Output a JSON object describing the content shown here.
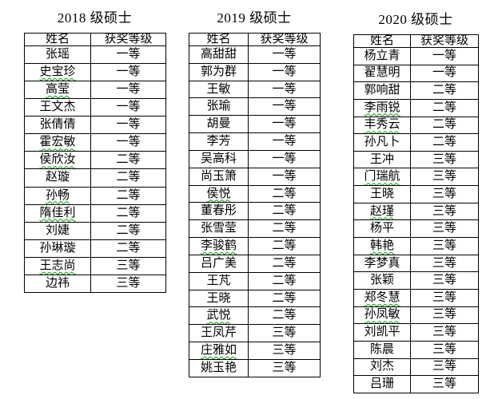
{
  "colors": {
    "page_background": "#ffffff",
    "text": "#000000",
    "table_border": "#000000",
    "spellcheck_underline": "#00a000"
  },
  "tables": [
    {
      "title": "2018 级硕士",
      "columns": [
        "姓名",
        "获奖等级"
      ],
      "rows": [
        {
          "name": "张瑶",
          "award": "一等",
          "spellcheck": false
        },
        {
          "name": "史宝珍",
          "award": "一等",
          "spellcheck": true
        },
        {
          "name": "高莹",
          "award": "一等",
          "spellcheck": true
        },
        {
          "name": "王文杰",
          "award": "一等",
          "spellcheck": false
        },
        {
          "name": "张倩倩",
          "award": "一等",
          "spellcheck": false
        },
        {
          "name": "霍宏敏",
          "award": "一等",
          "spellcheck": true
        },
        {
          "name": "侯欣汝",
          "award": "二等",
          "spellcheck": true
        },
        {
          "name": "赵璇",
          "award": "二等",
          "spellcheck": false
        },
        {
          "name": "孙畅",
          "award": "二等",
          "spellcheck": true
        },
        {
          "name": "隋佳利",
          "award": "二等",
          "spellcheck": true
        },
        {
          "name": "刘婕",
          "award": "二等",
          "spellcheck": false
        },
        {
          "name": "孙琳璇",
          "award": "二等",
          "spellcheck": false
        },
        {
          "name": "王志尚",
          "award": "三等",
          "spellcheck": true
        },
        {
          "name": "边祎",
          "award": "三等",
          "spellcheck": false
        }
      ]
    },
    {
      "title": "2019 级硕士",
      "columns": [
        "姓名",
        "获奖等级"
      ],
      "rows": [
        {
          "name": "高甜甜",
          "award": "一等",
          "spellcheck": false
        },
        {
          "name": "郭为群",
          "award": "一等",
          "spellcheck": false
        },
        {
          "name": "王敏",
          "award": "一等",
          "spellcheck": false
        },
        {
          "name": "张瑜",
          "award": "一等",
          "spellcheck": false
        },
        {
          "name": "胡曼",
          "award": "一等",
          "spellcheck": false
        },
        {
          "name": "李芳",
          "award": "一等",
          "spellcheck": false
        },
        {
          "name": "吴高科",
          "award": "一等",
          "spellcheck": false
        },
        {
          "name": "尚玉箫",
          "award": "一等",
          "spellcheck": false
        },
        {
          "name": "侯悦",
          "award": "二等",
          "spellcheck": true
        },
        {
          "name": "董春彤",
          "award": "二等",
          "spellcheck": false
        },
        {
          "name": "张雪莹",
          "award": "二等",
          "spellcheck": false
        },
        {
          "name": "李骏鹤",
          "award": "二等",
          "spellcheck": true
        },
        {
          "name": "吕广美",
          "award": "二等",
          "spellcheck": false
        },
        {
          "name": "王芃",
          "award": "二等",
          "spellcheck": false
        },
        {
          "name": "王晓",
          "award": "二等",
          "spellcheck": false
        },
        {
          "name": "武悦",
          "award": "二等",
          "spellcheck": true
        },
        {
          "name": "王凤芹",
          "award": "三等",
          "spellcheck": false
        },
        {
          "name": "庄雅如",
          "award": "三等",
          "spellcheck": true
        },
        {
          "name": "姚玉艳",
          "award": "三等",
          "spellcheck": false
        }
      ]
    },
    {
      "title": "2020 级硕士",
      "columns": [
        "姓名",
        "获奖等级"
      ],
      "rows": [
        {
          "name": "杨立青",
          "award": "一等",
          "spellcheck": false
        },
        {
          "name": "翟慧明",
          "award": "一等",
          "spellcheck": false
        },
        {
          "name": "郭响甜",
          "award": "二等",
          "spellcheck": false
        },
        {
          "name": "李雨锐",
          "award": "二等",
          "spellcheck": true
        },
        {
          "name": "丰秀云",
          "award": "二等",
          "spellcheck": true
        },
        {
          "name": "孙凡卜",
          "award": "二等",
          "spellcheck": false
        },
        {
          "name": "王冲",
          "award": "三等",
          "spellcheck": false
        },
        {
          "name": "门瑞航",
          "award": "三等",
          "spellcheck": true
        },
        {
          "name": "王晓",
          "award": "三等",
          "spellcheck": false
        },
        {
          "name": "赵瑾",
          "award": "三等",
          "spellcheck": true
        },
        {
          "name": "杨平",
          "award": "三等",
          "spellcheck": false
        },
        {
          "name": "韩艳",
          "award": "三等",
          "spellcheck": true
        },
        {
          "name": "李梦真",
          "award": "三等",
          "spellcheck": false
        },
        {
          "name": "张颖",
          "award": "三等",
          "spellcheck": false
        },
        {
          "name": "郑冬慧",
          "award": "三等",
          "spellcheck": true
        },
        {
          "name": "孙凤敏",
          "award": "三等",
          "spellcheck": true
        },
        {
          "name": "刘凯平",
          "award": "三等",
          "spellcheck": false
        },
        {
          "name": "陈晨",
          "award": "三等",
          "spellcheck": false
        },
        {
          "name": "刘杰",
          "award": "三等",
          "spellcheck": false
        },
        {
          "name": "吕珊",
          "award": "三等",
          "spellcheck": false
        }
      ]
    }
  ]
}
